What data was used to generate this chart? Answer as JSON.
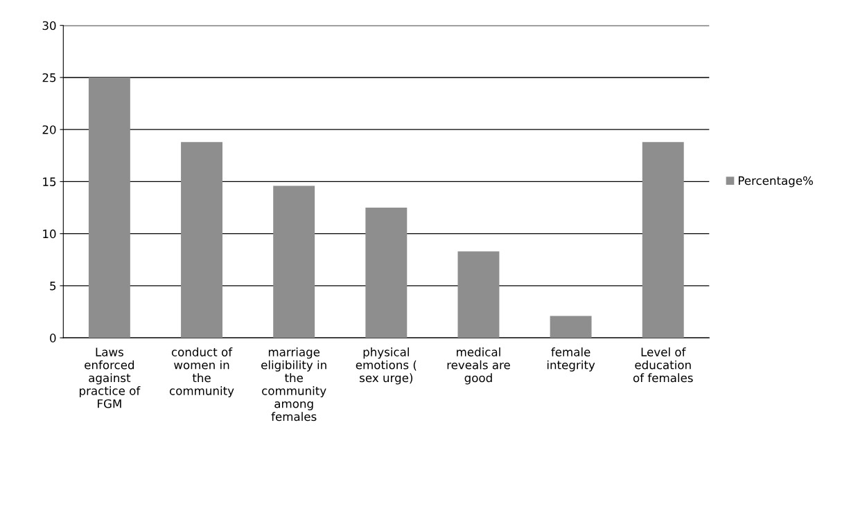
{
  "chart_data": {
    "type": "bar",
    "categories": [
      "Laws\nenforced\nagainst\npractice of\nFGM",
      "conduct of\nwomen in\nthe\ncommunity",
      "marriage\neligibility in\nthe\ncommunity\namong\nfemales",
      "physical\nemotions (\nsex urge)",
      "medical\nreveals are\ngood",
      "female\nintegrity",
      "Level of\neducation\nof females"
    ],
    "series": [
      {
        "name": "Percentage%",
        "color": "#8e8e8e",
        "values": [
          25,
          18.8,
          14.6,
          12.5,
          8.3,
          2.1,
          18.8
        ]
      }
    ],
    "ylim": [
      0,
      30
    ],
    "yticks": [
      0,
      5,
      10,
      15,
      20,
      25,
      30
    ],
    "grid": "y",
    "legend": "right"
  }
}
